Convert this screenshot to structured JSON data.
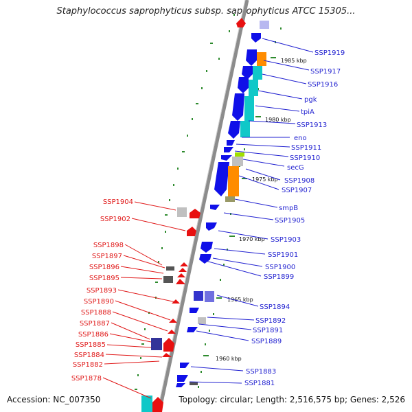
{
  "title": "Staphylococcus saprophyticus subsp. saprophyticus ATCC 15305...",
  "footer": {
    "accession": "Accession: NC_007350",
    "topology": "Topology: circular; Length: 2,516,575 bp; Genes: 2,526"
  },
  "colors": {
    "forward_gene": "#1010e8",
    "reverse_gene": "#e81010",
    "rrna": "#10c8c8",
    "trna": "#ff8c00",
    "tick": "#2e8b2e",
    "backbone": "#8c8c8c"
  },
  "kbp_ticks": [
    "1985 kbp",
    "1980 kbp",
    "1975 kbp",
    "1970 kbp",
    "1965 kbp",
    "1960 kbp"
  ],
  "right_labels": [
    "SSP1919",
    "SSP1917",
    "SSP1916",
    "pgk",
    "tpiA",
    "SSP1913",
    "eno",
    "SSP1911",
    "SSP1910",
    "secG",
    "SSP1908",
    "SSP1907",
    "smpB",
    "SSP1905",
    "SSP1903",
    "SSP1901",
    "SSP1900",
    "SSP1899",
    "SSP1894",
    "SSP1892",
    "SSP1891",
    "SSP1889",
    "SSP1883",
    "SSP1881"
  ],
  "left_labels": [
    "SSP1904",
    "SSP1902",
    "SSP1898",
    "SSP1897",
    "SSP1896",
    "SSP1895",
    "SSP1893",
    "SSP1890",
    "SSP1888",
    "SSP1887",
    "SSP1886",
    "SSP1885",
    "SSP1884",
    "SSP1882",
    "SSP1878"
  ]
}
